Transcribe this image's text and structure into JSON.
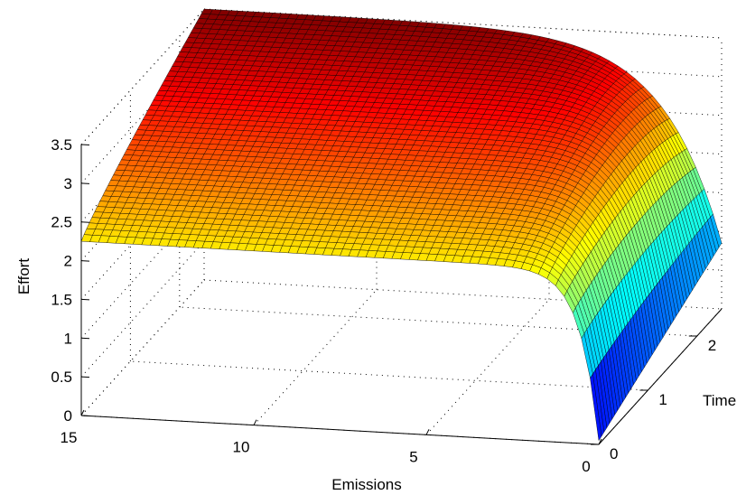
{
  "chart_data": {
    "type": "surface",
    "title": "",
    "xlabel": "Emissions",
    "ylabel": "Time",
    "zlabel": "Effort",
    "xlim": [
      0,
      15
    ],
    "ylim": [
      0,
      2.5
    ],
    "zlim": [
      0,
      3.5
    ],
    "x_ticks": [
      {
        "value": 0,
        "label": "0"
      },
      {
        "value": 5,
        "label": "5"
      },
      {
        "value": 10,
        "label": "10"
      },
      {
        "value": 15,
        "label": "15"
      }
    ],
    "y_ticks": [
      {
        "value": 0,
        "label": "0"
      },
      {
        "value": 1,
        "label": "1"
      },
      {
        "value": 2,
        "label": "2"
      }
    ],
    "z_ticks": [
      {
        "value": 0,
        "label": "0"
      },
      {
        "value": 0.5,
        "label": "0.5"
      },
      {
        "value": 1,
        "label": "1"
      },
      {
        "value": 1.5,
        "label": "1.5"
      },
      {
        "value": 2,
        "label": "2"
      },
      {
        "value": 2.5,
        "label": "2.5"
      },
      {
        "value": 3,
        "label": "3"
      },
      {
        "value": 3.5,
        "label": "3.5"
      }
    ],
    "corner_values": {
      "emissions_15_time_0": 2.25,
      "emissions_15_time_2.5": 3.5,
      "emissions_0_time_0": 0.05,
      "emissions_0_time_2.5": 0.85
    },
    "grid": true,
    "colormap": "jet",
    "colorscale_range": [
      0,
      3.5
    ]
  }
}
